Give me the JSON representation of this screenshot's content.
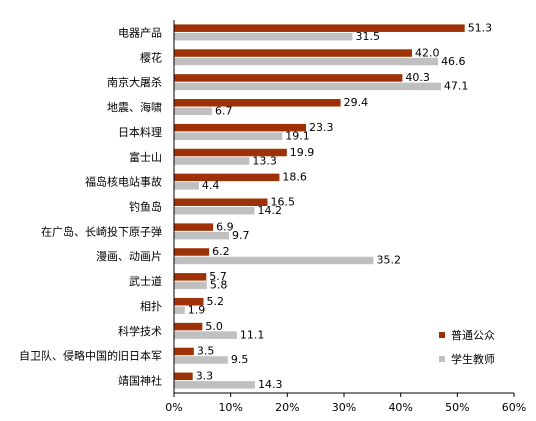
{
  "chart_data": {
    "type": "bar",
    "orientation": "horizontal",
    "categories": [
      "电器产品",
      "樱花",
      "南京大屠杀",
      "地震、海啸",
      "日本料理",
      "富士山",
      "福岛核电站事故",
      "钓鱼岛",
      "在广岛、长崎投下原子弹",
      "漫画、动画片",
      "武士道",
      "相扑",
      "科学技术",
      "自卫队、侵略中国的旧日本军",
      "靖国神社"
    ],
    "series": [
      {
        "name": "普通公众",
        "color": "#9E3206",
        "values": [
          51.3,
          42.0,
          40.3,
          29.4,
          23.3,
          19.9,
          18.6,
          16.5,
          6.9,
          6.2,
          5.7,
          5.2,
          5.0,
          3.5,
          3.3
        ]
      },
      {
        "name": "学生教师",
        "color": "#C0C0C0",
        "values": [
          31.5,
          46.6,
          47.1,
          6.7,
          19.1,
          13.3,
          4.4,
          14.2,
          9.7,
          35.2,
          5.8,
          1.9,
          11.1,
          9.5,
          14.3
        ]
      }
    ],
    "value_labels": [
      [
        "51.3",
        "42.0",
        "40.3",
        "29.4",
        "23.3",
        "19.9",
        "18.6",
        "16.5",
        "6.9",
        "6.2",
        "5.7",
        "5.2",
        "5.0",
        "3.5",
        "3.3"
      ],
      [
        "31.5",
        "46.6",
        "47.1",
        "6.7",
        "19.1",
        "13.3",
        "4.4",
        "14.2",
        "9.7",
        "35.2",
        "5.8",
        "1.9",
        "11.1",
        "9.5",
        "14.3"
      ]
    ],
    "x_ticks": [
      "0%",
      "10%",
      "20%",
      "30%",
      "40%",
      "50%",
      "60%"
    ],
    "xlim": [
      0,
      60
    ],
    "grid": false,
    "legend_position": "bottom-right"
  }
}
